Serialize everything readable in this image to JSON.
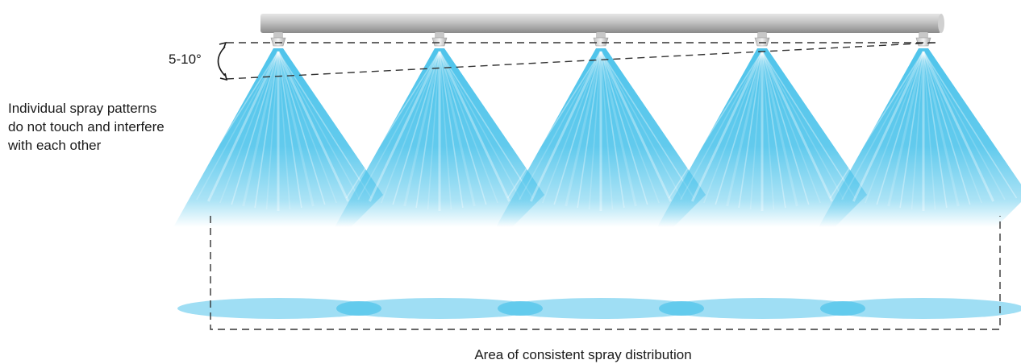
{
  "angle_label": "5-10°",
  "note": {
    "lines": [
      "Individual spray patterns",
      "do not touch and interfere",
      "with each other"
    ]
  },
  "area_label": "Area of consistent spray distribution",
  "colors": {
    "spray": "#46c1ea",
    "spray_pool": "#8ed8f2",
    "overlap": "#5ec9ec",
    "pipe": "#bdbdbd",
    "dash": "#333333"
  },
  "nozzle_count": 5
}
